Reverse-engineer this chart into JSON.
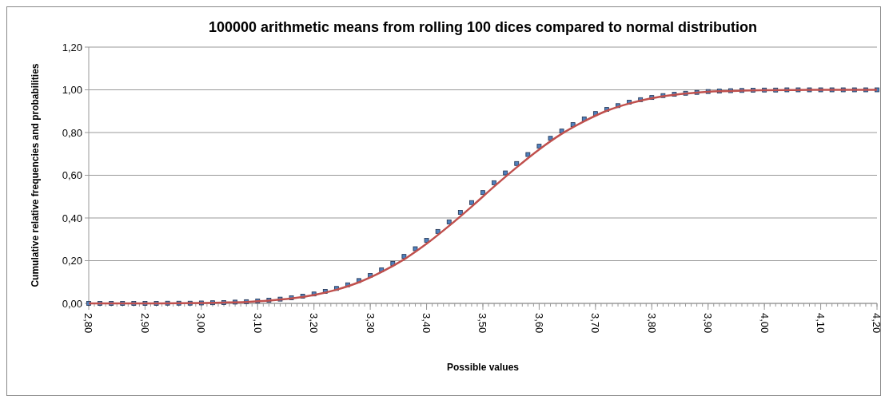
{
  "chart_data": {
    "type": "scatter",
    "title": "100000 arithmetic means from rolling 100 dices compared to normal distribution",
    "xlabel": "Possible values",
    "ylabel": "Cumulative relative frequencies and probabilities",
    "xlim": [
      2.8,
      4.2
    ],
    "ylim": [
      0,
      1.2
    ],
    "xticks": [
      {
        "value": 2.8,
        "label": "2,80"
      },
      {
        "value": 2.9,
        "label": "2,90"
      },
      {
        "value": 3.0,
        "label": "3,00"
      },
      {
        "value": 3.1,
        "label": "3,10"
      },
      {
        "value": 3.2,
        "label": "3,20"
      },
      {
        "value": 3.3,
        "label": "3,30"
      },
      {
        "value": 3.4,
        "label": "3,40"
      },
      {
        "value": 3.5,
        "label": "3,50"
      },
      {
        "value": 3.6,
        "label": "3,60"
      },
      {
        "value": 3.7,
        "label": "3,70"
      },
      {
        "value": 3.8,
        "label": "3,80"
      },
      {
        "value": 3.9,
        "label": "3,90"
      },
      {
        "value": 4.0,
        "label": "4,00"
      },
      {
        "value": 4.1,
        "label": "4,10"
      },
      {
        "value": 4.2,
        "label": "4,20"
      }
    ],
    "yticks": [
      {
        "value": 0,
        "label": "0,00"
      },
      {
        "value": 0.2,
        "label": "0,20"
      },
      {
        "value": 0.4,
        "label": "0,40"
      },
      {
        "value": 0.6,
        "label": "0,60"
      },
      {
        "value": 0.8,
        "label": "0,80"
      },
      {
        "value": 1.0,
        "label": "1,00"
      },
      {
        "value": 1.2,
        "label": "1,20"
      }
    ],
    "grid": "y",
    "series": [
      {
        "marker": "square",
        "color": "#4f81bd",
        "x": [
          2.8,
          2.82,
          2.84,
          2.86,
          2.88,
          2.9,
          2.92,
          2.94,
          2.96,
          2.98,
          3.0,
          3.02,
          3.04,
          3.06,
          3.08,
          3.1,
          3.12,
          3.14,
          3.16,
          3.18,
          3.2,
          3.22,
          3.24,
          3.26,
          3.28,
          3.3,
          3.32,
          3.34,
          3.36,
          3.38,
          3.4,
          3.42,
          3.44,
          3.46,
          3.48,
          3.5,
          3.52,
          3.54,
          3.56,
          3.58,
          3.6,
          3.62,
          3.64,
          3.66,
          3.68,
          3.7,
          3.72,
          3.74,
          3.76,
          3.78,
          3.8,
          3.82,
          3.84,
          3.86,
          3.88,
          3.9,
          3.92,
          3.94,
          3.96,
          3.98,
          4.0,
          4.02,
          4.04,
          4.06,
          4.08,
          4.1,
          4.12,
          4.14,
          4.16,
          4.18,
          4.2
        ],
        "values": [
          0,
          0,
          0,
          0,
          0,
          0,
          0,
          0.001,
          0.001,
          0.001,
          0.002,
          0.003,
          0.004,
          0.006,
          0.008,
          0.011,
          0.015,
          0.02,
          0.026,
          0.034,
          0.044,
          0.056,
          0.07,
          0.087,
          0.107,
          0.131,
          0.157,
          0.187,
          0.22,
          0.256,
          0.295,
          0.337,
          0.381,
          0.426,
          0.472,
          0.519,
          0.565,
          0.611,
          0.655,
          0.697,
          0.736,
          0.773,
          0.807,
          0.837,
          0.864,
          0.889,
          0.908,
          0.926,
          0.942,
          0.954,
          0.964,
          0.973,
          0.979,
          0.984,
          0.988,
          0.992,
          0.994,
          0.996,
          0.997,
          0.998,
          0.999,
          0.999,
          1,
          1,
          1,
          1,
          1,
          1,
          1,
          1,
          1
        ]
      },
      {
        "type": "line",
        "line_style": "solid",
        "color": "#c0504d",
        "x": [
          2.8,
          2.84,
          2.88,
          2.92,
          2.96,
          3.0,
          3.04,
          3.08,
          3.12,
          3.16,
          3.2,
          3.24,
          3.28,
          3.32,
          3.36,
          3.4,
          3.44,
          3.48,
          3.52,
          3.56,
          3.6,
          3.64,
          3.68,
          3.72,
          3.76,
          3.8,
          3.84,
          3.88,
          3.92,
          3.96,
          4.0,
          4.04,
          4.08,
          4.12,
          4.16,
          4.2
        ],
        "values": [
          0,
          0,
          0,
          0,
          0.001,
          0.002,
          0.004,
          0.007,
          0.013,
          0.023,
          0.039,
          0.064,
          0.099,
          0.147,
          0.206,
          0.279,
          0.363,
          0.453,
          0.547,
          0.637,
          0.721,
          0.794,
          0.853,
          0.902,
          0.936,
          0.961,
          0.977,
          0.987,
          0.993,
          0.996,
          0.998,
          0.999,
          1,
          1,
          1,
          1
        ]
      }
    ]
  }
}
